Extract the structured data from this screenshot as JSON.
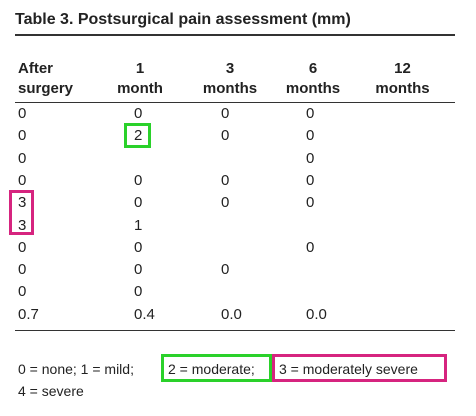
{
  "title": "Table 3. Postsurgical pain assessment (mm)",
  "table": {
    "header": [
      [
        "After",
        "surgery"
      ],
      [
        "1",
        "month"
      ],
      [
        "3",
        "months"
      ],
      [
        "6",
        "months"
      ],
      [
        "12",
        "months"
      ]
    ],
    "rows": [
      [
        "0",
        "0",
        "0",
        "0",
        null
      ],
      [
        "0",
        "2",
        "0",
        "0",
        null
      ],
      [
        "0",
        null,
        null,
        "0",
        null
      ],
      [
        "0",
        "0",
        "0",
        "0",
        null
      ],
      [
        "3",
        "0",
        "0",
        "0",
        null
      ],
      [
        "3",
        "1",
        null,
        null,
        null
      ],
      [
        "0",
        "0",
        null,
        "0",
        null
      ],
      [
        "0",
        "0",
        "0",
        null,
        null
      ],
      [
        "0",
        "0",
        null,
        null,
        null
      ],
      [
        "0.7",
        "0.4",
        "0.0",
        "0.0",
        null
      ]
    ]
  },
  "footnote": [
    "0 = none; 1 = mild;",
    "2 = moderate;",
    "3 = moderately severe",
    "4 = severe"
  ]
}
